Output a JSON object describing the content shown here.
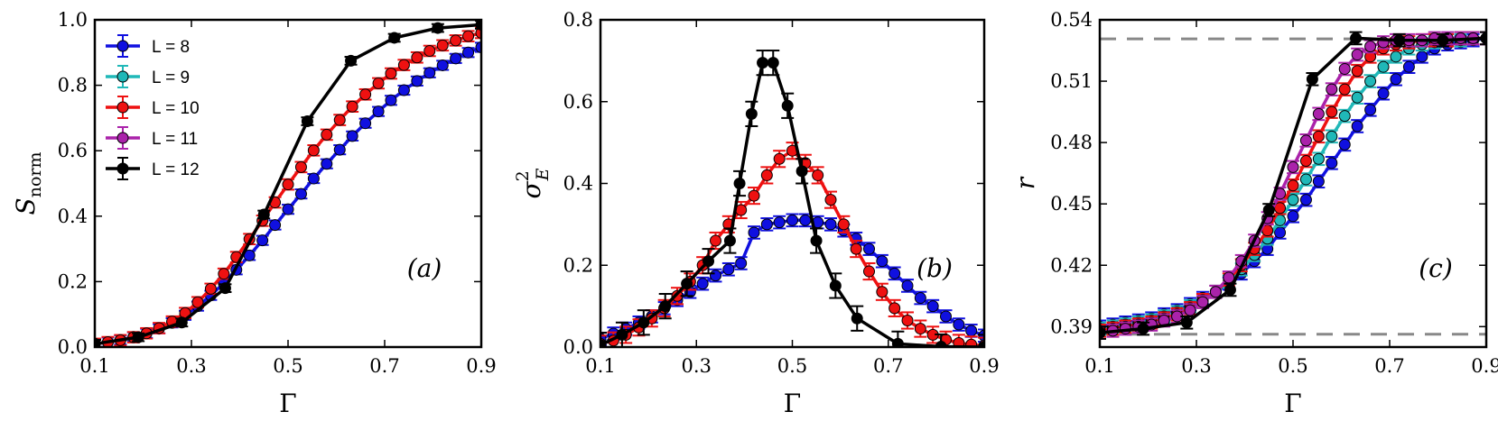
{
  "colors": {
    "L8": "#1010e0",
    "L9": "#20b8b8",
    "L10": "#ee1111",
    "L11": "#aa22aa",
    "L12": "#000000",
    "ref": "#888888"
  },
  "legend": [
    {
      "key": "L8",
      "label": "L = 8"
    },
    {
      "key": "L9",
      "label": "L = 9"
    },
    {
      "key": "L10",
      "label": "L = 10"
    },
    {
      "key": "L11",
      "label": "L = 11"
    },
    {
      "key": "L12",
      "label": "L = 12"
    }
  ],
  "chart_data": [
    {
      "type": "line",
      "panel": "(a)",
      "xlabel": "Γ",
      "ylabel": {
        "main": "S",
        "sub": "norm"
      },
      "xlim": [
        0.1,
        0.9
      ],
      "ylim": [
        0.0,
        1.0
      ],
      "xticks": [
        0.1,
        0.3,
        0.5,
        0.7,
        0.9
      ],
      "xtick_labels": [
        "0.1",
        "0.3",
        "0.5",
        "0.7",
        "0.9"
      ],
      "yticks": [
        0.0,
        0.2,
        0.4,
        0.6,
        0.8,
        1.0
      ],
      "ytick_labels": [
        "0.0",
        "0.2",
        "0.4",
        "0.6",
        "0.8",
        "1.0"
      ],
      "legend_position": "upper-left",
      "series": [
        {
          "key": "L8",
          "name": "L = 8",
          "x": [
            0.1,
            0.127,
            0.153,
            0.18,
            0.207,
            0.233,
            0.26,
            0.287,
            0.313,
            0.34,
            0.367,
            0.393,
            0.42,
            0.447,
            0.473,
            0.5,
            0.527,
            0.553,
            0.58,
            0.607,
            0.633,
            0.66,
            0.687,
            0.713,
            0.74,
            0.767,
            0.793,
            0.82,
            0.847,
            0.873,
            0.9
          ],
          "y": [
            0.01,
            0.015,
            0.022,
            0.031,
            0.042,
            0.056,
            0.074,
            0.097,
            0.125,
            0.158,
            0.195,
            0.236,
            0.28,
            0.326,
            0.373,
            0.421,
            0.468,
            0.515,
            0.56,
            0.603,
            0.645,
            0.684,
            0.72,
            0.754,
            0.785,
            0.813,
            0.838,
            0.861,
            0.882,
            0.9,
            0.916
          ],
          "err": 0.014
        },
        {
          "key": "L10",
          "name": "L = 10",
          "x": [
            0.1,
            0.127,
            0.153,
            0.18,
            0.207,
            0.233,
            0.26,
            0.287,
            0.313,
            0.34,
            0.367,
            0.393,
            0.42,
            0.447,
            0.473,
            0.5,
            0.527,
            0.553,
            0.58,
            0.607,
            0.633,
            0.66,
            0.687,
            0.713,
            0.74,
            0.767,
            0.793,
            0.82,
            0.847,
            0.873,
            0.9
          ],
          "y": [
            0.01,
            0.015,
            0.021,
            0.03,
            0.042,
            0.058,
            0.078,
            0.104,
            0.137,
            0.178,
            0.224,
            0.275,
            0.33,
            0.386,
            0.442,
            0.497,
            0.55,
            0.601,
            0.649,
            0.694,
            0.735,
            0.772,
            0.806,
            0.836,
            0.862,
            0.885,
            0.905,
            0.922,
            0.937,
            0.95,
            0.96
          ],
          "err": 0.016
        },
        {
          "key": "L12",
          "name": "L = 12",
          "x": [
            0.1,
            0.19,
            0.28,
            0.37,
            0.45,
            0.54,
            0.63,
            0.72,
            0.81,
            0.9
          ],
          "y": [
            0.01,
            0.03,
            0.075,
            0.18,
            0.405,
            0.69,
            0.875,
            0.945,
            0.975,
            0.985
          ],
          "err": 0.012
        }
      ]
    },
    {
      "type": "line",
      "panel": "(b)",
      "xlabel": "Γ",
      "ylabel": {
        "main": "σ",
        "sup": "2",
        "sub": "E"
      },
      "xlim": [
        0.1,
        0.9
      ],
      "ylim": [
        0.0,
        0.8
      ],
      "xticks": [
        0.1,
        0.3,
        0.5,
        0.7,
        0.9
      ],
      "xtick_labels": [
        "0.1",
        "0.3",
        "0.5",
        "0.7",
        "0.9"
      ],
      "yticks": [
        0.0,
        0.2,
        0.4,
        0.6,
        0.8
      ],
      "ytick_labels": [
        "0.0",
        "0.2",
        "0.4",
        "0.6",
        "0.8"
      ],
      "series": [
        {
          "key": "L8",
          "name": "L = 8",
          "x": [
            0.1,
            0.127,
            0.153,
            0.18,
            0.207,
            0.233,
            0.26,
            0.287,
            0.313,
            0.34,
            0.367,
            0.393,
            0.42,
            0.447,
            0.473,
            0.5,
            0.527,
            0.553,
            0.58,
            0.607,
            0.633,
            0.66,
            0.687,
            0.713,
            0.74,
            0.767,
            0.793,
            0.82,
            0.847,
            0.873,
            0.9
          ],
          "y": [
            0.02,
            0.033,
            0.045,
            0.06,
            0.075,
            0.095,
            0.115,
            0.135,
            0.155,
            0.175,
            0.19,
            0.205,
            0.28,
            0.3,
            0.305,
            0.31,
            0.31,
            0.305,
            0.3,
            0.285,
            0.265,
            0.24,
            0.21,
            0.18,
            0.15,
            0.12,
            0.1,
            0.075,
            0.055,
            0.04,
            0.028
          ],
          "err": 0.015
        },
        {
          "key": "L10",
          "name": "L = 10",
          "x": [
            0.1,
            0.127,
            0.153,
            0.18,
            0.207,
            0.233,
            0.26,
            0.287,
            0.313,
            0.34,
            0.367,
            0.393,
            0.42,
            0.447,
            0.473,
            0.5,
            0.527,
            0.553,
            0.58,
            0.607,
            0.633,
            0.66,
            0.687,
            0.713,
            0.74,
            0.767,
            0.793,
            0.82,
            0.847,
            0.873,
            0.9
          ],
          "y": [
            0.008,
            0.016,
            0.03,
            0.048,
            0.07,
            0.095,
            0.125,
            0.16,
            0.2,
            0.26,
            0.3,
            0.335,
            0.37,
            0.42,
            0.46,
            0.48,
            0.45,
            0.42,
            0.36,
            0.3,
            0.24,
            0.185,
            0.135,
            0.095,
            0.065,
            0.045,
            0.03,
            0.018,
            0.01,
            0.006,
            0.003
          ],
          "err": 0.02
        },
        {
          "key": "L12",
          "name": "L = 12",
          "x": [
            0.1,
            0.145,
            0.19,
            0.235,
            0.28,
            0.325,
            0.37,
            0.39,
            0.415,
            0.438,
            0.46,
            0.49,
            0.52,
            0.55,
            0.59,
            0.635,
            0.72,
            0.81,
            0.9
          ],
          "y": [
            0.005,
            0.03,
            0.06,
            0.1,
            0.155,
            0.21,
            0.26,
            0.4,
            0.57,
            0.695,
            0.695,
            0.59,
            0.43,
            0.26,
            0.15,
            0.07,
            0.008,
            0.001,
            0.0
          ],
          "err": 0.03
        }
      ]
    },
    {
      "type": "line",
      "panel": "(c)",
      "xlabel": "Γ",
      "ylabel": {
        "main": "r"
      },
      "xlim": [
        0.1,
        0.9
      ],
      "ylim": [
        0.38,
        0.54
      ],
      "xticks": [
        0.1,
        0.3,
        0.5,
        0.7,
        0.9
      ],
      "xtick_labels": [
        "0.1",
        "0.3",
        "0.5",
        "0.7",
        "0.9"
      ],
      "yticks": [
        0.39,
        0.42,
        0.45,
        0.48,
        0.51,
        0.54
      ],
      "ytick_labels": [
        "0.39",
        "0.42",
        "0.45",
        "0.48",
        "0.51",
        "0.54"
      ],
      "reference_lines": [
        0.5307,
        0.3863
      ],
      "series": [
        {
          "key": "L8",
          "name": "L = 8",
          "x": [
            0.1,
            0.127,
            0.153,
            0.18,
            0.207,
            0.233,
            0.26,
            0.287,
            0.313,
            0.34,
            0.367,
            0.393,
            0.42,
            0.447,
            0.473,
            0.5,
            0.527,
            0.553,
            0.58,
            0.607,
            0.633,
            0.66,
            0.687,
            0.713,
            0.74,
            0.767,
            0.793,
            0.82,
            0.847,
            0.873,
            0.9
          ],
          "y": [
            0.39,
            0.391,
            0.392,
            0.393,
            0.394,
            0.396,
            0.398,
            0.401,
            0.404,
            0.407,
            0.411,
            0.416,
            0.422,
            0.428,
            0.436,
            0.444,
            0.452,
            0.461,
            0.47,
            0.479,
            0.488,
            0.496,
            0.504,
            0.511,
            0.517,
            0.522,
            0.526,
            0.528,
            0.529,
            0.53,
            0.531
          ],
          "err": 0.003
        },
        {
          "key": "L9",
          "name": "L = 9",
          "x": [
            0.1,
            0.127,
            0.153,
            0.18,
            0.207,
            0.233,
            0.26,
            0.287,
            0.313,
            0.34,
            0.367,
            0.393,
            0.42,
            0.447,
            0.473,
            0.5,
            0.527,
            0.553,
            0.58,
            0.607,
            0.633,
            0.66,
            0.687,
            0.713,
            0.74,
            0.767,
            0.793,
            0.82,
            0.847,
            0.873,
            0.9
          ],
          "y": [
            0.389,
            0.39,
            0.391,
            0.392,
            0.393,
            0.395,
            0.397,
            0.4,
            0.403,
            0.407,
            0.412,
            0.418,
            0.425,
            0.433,
            0.442,
            0.452,
            0.462,
            0.472,
            0.483,
            0.493,
            0.502,
            0.51,
            0.517,
            0.522,
            0.526,
            0.528,
            0.529,
            0.53,
            0.53,
            0.531,
            0.531
          ],
          "err": 0.003
        },
        {
          "key": "L10",
          "name": "L = 10",
          "x": [
            0.1,
            0.127,
            0.153,
            0.18,
            0.207,
            0.233,
            0.26,
            0.287,
            0.313,
            0.34,
            0.367,
            0.393,
            0.42,
            0.447,
            0.473,
            0.5,
            0.527,
            0.553,
            0.58,
            0.607,
            0.633,
            0.66,
            0.687,
            0.713,
            0.74,
            0.767,
            0.793,
            0.82,
            0.847,
            0.873,
            0.9
          ],
          "y": [
            0.388,
            0.389,
            0.39,
            0.391,
            0.392,
            0.394,
            0.396,
            0.399,
            0.403,
            0.407,
            0.413,
            0.42,
            0.428,
            0.437,
            0.448,
            0.459,
            0.471,
            0.483,
            0.495,
            0.506,
            0.515,
            0.522,
            0.526,
            0.528,
            0.529,
            0.53,
            0.53,
            0.53,
            0.531,
            0.531,
            0.531
          ],
          "err": 0.003
        },
        {
          "key": "L11",
          "name": "L = 11",
          "x": [
            0.1,
            0.127,
            0.153,
            0.18,
            0.207,
            0.233,
            0.26,
            0.287,
            0.313,
            0.34,
            0.367,
            0.393,
            0.42,
            0.447,
            0.473,
            0.5,
            0.527,
            0.553,
            0.58,
            0.607,
            0.633,
            0.66,
            0.687,
            0.713,
            0.74,
            0.767,
            0.793,
            0.82,
            0.847,
            0.873,
            0.9
          ],
          "y": [
            0.387,
            0.388,
            0.389,
            0.39,
            0.391,
            0.393,
            0.395,
            0.398,
            0.402,
            0.407,
            0.414,
            0.422,
            0.432,
            0.443,
            0.455,
            0.468,
            0.481,
            0.494,
            0.506,
            0.516,
            0.523,
            0.527,
            0.529,
            0.53,
            0.53,
            0.53,
            0.531,
            0.531,
            0.531,
            0.531,
            0.531
          ],
          "err": 0.003
        },
        {
          "key": "L12",
          "name": "L = 12",
          "x": [
            0.1,
            0.19,
            0.28,
            0.37,
            0.45,
            0.54,
            0.63,
            0.72,
            0.81,
            0.9
          ],
          "y": [
            0.387,
            0.389,
            0.392,
            0.408,
            0.447,
            0.511,
            0.531,
            0.53,
            0.53,
            0.531
          ],
          "err": 0.003
        }
      ]
    }
  ]
}
